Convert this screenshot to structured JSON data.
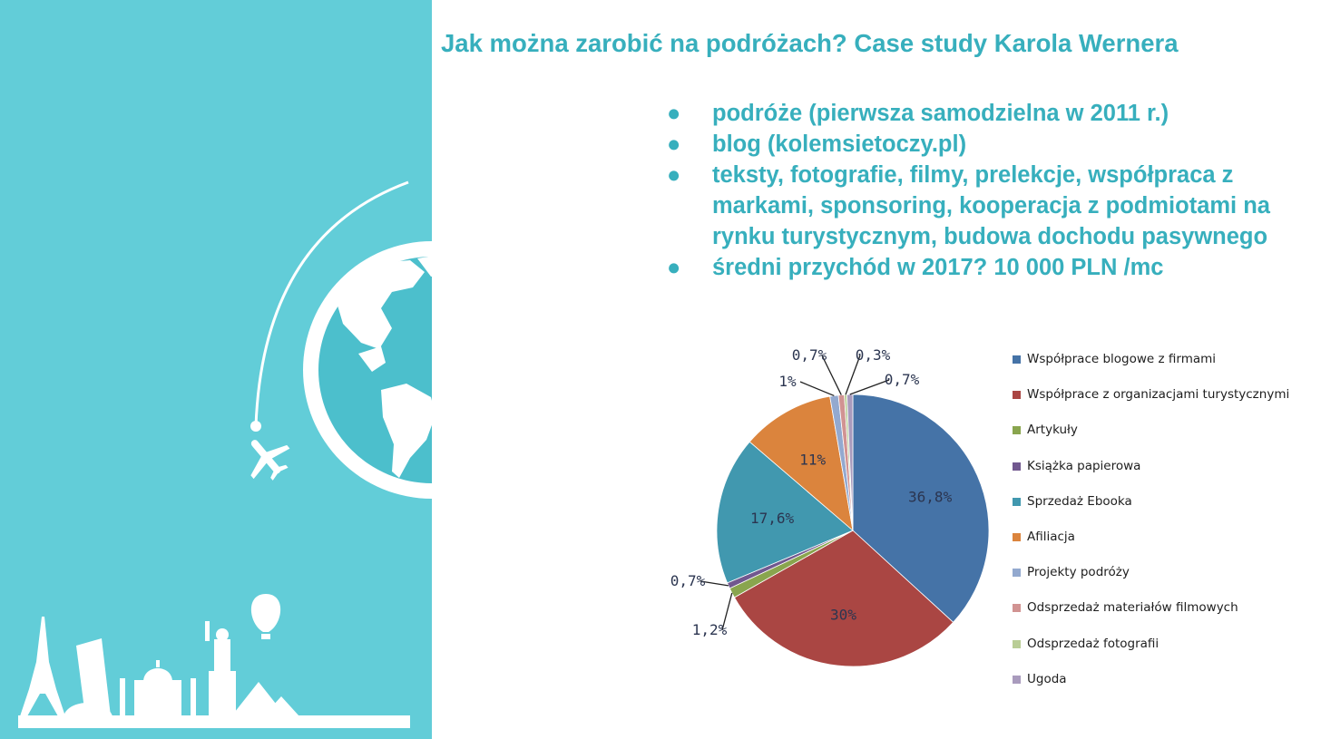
{
  "title": "Jak można zarobić na podróżach? Case study Karola Wernera",
  "bullets": [
    "podróże (pierwsza samodzielna w 2011 r.)",
    "blog (kolemsietoczy.pl)",
    "teksty, fotografie, filmy, prelekcje, współpraca z markami, sponsoring, kooperacja z podmiotami na rynku turystycznym, budowa dochodu pasywnego",
    "średni przychód w 2017? 10 000 PLN /mc"
  ],
  "bullet_char": "●",
  "colors": {
    "panel": "#62cdd8",
    "heading": "#37afbd",
    "globe_land": "#ffffff",
    "globe_ocean": "#4cbfcc"
  },
  "icons": [
    "globe-icon",
    "airplane-icon",
    "hot-air-balloon-icon",
    "eiffel-tower-icon",
    "leaning-tower-icon",
    "taj-mahal-icon",
    "statue-of-liberty-icon",
    "pyramids-icon"
  ],
  "chart_data": {
    "type": "pie",
    "start": "top, clockwise",
    "categories": [
      "Współprace blogowe z firmami",
      "Współprace z organizacjami  turystycznymi",
      "Artykuły",
      "Książka papierowa",
      "Sprzedaż Ebooka",
      "Afiliacja",
      "Projekty podróży",
      "Odsprzedaż materiałów filmowych",
      "Odsprzedaż fotografii",
      "Ugoda"
    ],
    "values": [
      36.8,
      30,
      1.2,
      0.7,
      17.6,
      11,
      1,
      0.7,
      0.3,
      0.7
    ],
    "labels": [
      "36,8%",
      "30%",
      "1,2%",
      "0,7%",
      "17,6%",
      "11%",
      "1%",
      "0,7%",
      "0,3%",
      "0,7%"
    ],
    "colors": [
      "#4573a7",
      "#aa4643",
      "#89a54e",
      "#71588f",
      "#4198af",
      "#db843d",
      "#93a9cf",
      "#d19392",
      "#b9cd96",
      "#a99bbd"
    ],
    "legend_position": "right"
  }
}
